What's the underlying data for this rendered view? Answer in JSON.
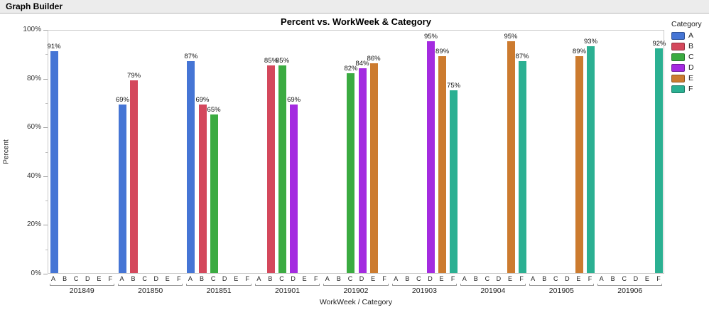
{
  "window": {
    "header_title": "Graph Builder"
  },
  "chart_data": {
    "type": "bar",
    "title": "Percent vs. WorkWeek & Category",
    "xlabel": "WorkWeek / Category",
    "ylabel": "Percent",
    "ylim": [
      0,
      100
    ],
    "grid": false,
    "y_major_ticks": [
      {
        "value": 0,
        "label": "0%"
      },
      {
        "value": 20,
        "label": "20%"
      },
      {
        "value": 40,
        "label": "40%"
      },
      {
        "value": 60,
        "label": "60%"
      },
      {
        "value": 80,
        "label": "80%"
      },
      {
        "value": 100,
        "label": "100%"
      }
    ],
    "y_minor_ticks": [
      10,
      30,
      50,
      70,
      90
    ],
    "categories": [
      "A",
      "B",
      "C",
      "D",
      "E",
      "F"
    ],
    "category_colors": {
      "A": "#4575D5",
      "B": "#D4485C",
      "C": "#3BAB41",
      "D": "#A42BE0",
      "E": "#CC7B2F",
      "F": "#2BB092"
    },
    "groups": [
      {
        "workweek": "201849",
        "bars": [
          {
            "category": "A",
            "value": 91,
            "label": "91%"
          }
        ]
      },
      {
        "workweek": "201850",
        "bars": [
          {
            "category": "A",
            "value": 69,
            "label": "69%"
          },
          {
            "category": "B",
            "value": 79,
            "label": "79%"
          }
        ]
      },
      {
        "workweek": "201851",
        "bars": [
          {
            "category": "A",
            "value": 87,
            "label": "87%"
          },
          {
            "category": "B",
            "value": 69,
            "label": "69%"
          },
          {
            "category": "C",
            "value": 65,
            "label": "65%"
          }
        ]
      },
      {
        "workweek": "201901",
        "bars": [
          {
            "category": "B",
            "value": 85,
            "label": "85%"
          },
          {
            "category": "C",
            "value": 85,
            "label": "85%"
          },
          {
            "category": "D",
            "value": 69,
            "label": "69%"
          }
        ]
      },
      {
        "workweek": "201902",
        "bars": [
          {
            "category": "C",
            "value": 82,
            "label": "82%"
          },
          {
            "category": "D",
            "value": 84,
            "label": "84%"
          },
          {
            "category": "E",
            "value": 86,
            "label": "86%"
          }
        ]
      },
      {
        "workweek": "201903",
        "bars": [
          {
            "category": "D",
            "value": 95,
            "label": "95%"
          },
          {
            "category": "E",
            "value": 89,
            "label": "89%"
          },
          {
            "category": "F",
            "value": 75,
            "label": "75%"
          }
        ]
      },
      {
        "workweek": "201904",
        "bars": [
          {
            "category": "E",
            "value": 95,
            "label": "95%"
          },
          {
            "category": "F",
            "value": 87,
            "label": "87%"
          }
        ]
      },
      {
        "workweek": "201905",
        "bars": [
          {
            "category": "E",
            "value": 89,
            "label": "89%"
          },
          {
            "category": "F",
            "value": 93,
            "label": "93%"
          }
        ]
      },
      {
        "workweek": "201906",
        "bars": [
          {
            "category": "F",
            "value": 92,
            "label": "92%"
          }
        ]
      }
    ],
    "legend": {
      "title": "Category",
      "position": "right",
      "entries": [
        "A",
        "B",
        "C",
        "D",
        "E",
        "F"
      ]
    }
  }
}
